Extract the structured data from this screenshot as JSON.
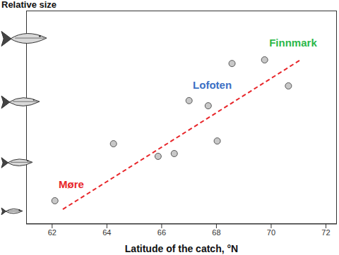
{
  "chart_data": {
    "type": "scatter",
    "ylabel": "Relative size",
    "xlabel": "Latitude of the catch, °N",
    "x": [
      62.1,
      64.24,
      65.87,
      66.46,
      67.0,
      67.7,
      68.03,
      68.57,
      69.76,
      70.63
    ],
    "values": [
      1.09,
      3.76,
      3.17,
      3.3,
      5.78,
      5.54,
      3.89,
      7.52,
      7.69,
      6.47
    ],
    "color": "#c8c8c8",
    "marker": "circle",
    "xlim": [
      61.05,
      72.4
    ],
    "xticks": [
      62,
      64,
      66,
      68,
      70,
      72
    ],
    "ylim": [
      0,
      10
    ],
    "tick_labels": "x",
    "grid": false,
    "trend": {
      "x": [
        62.39,
        71.07
      ],
      "y": [
        0.69,
        7.69
      ],
      "color": "#e8262a",
      "line_style": "dashed"
    },
    "annotations": [
      {
        "text": "Møre",
        "x": 62.7,
        "y": 1.85,
        "color": "#e8262a"
      },
      {
        "text": "Lofoten",
        "x": 67.85,
        "y": 6.53,
        "color": "#3a6fc4"
      },
      {
        "text": "Finnmark",
        "x": 70.8,
        "y": 8.5,
        "color": "#2db84a"
      }
    ]
  }
}
